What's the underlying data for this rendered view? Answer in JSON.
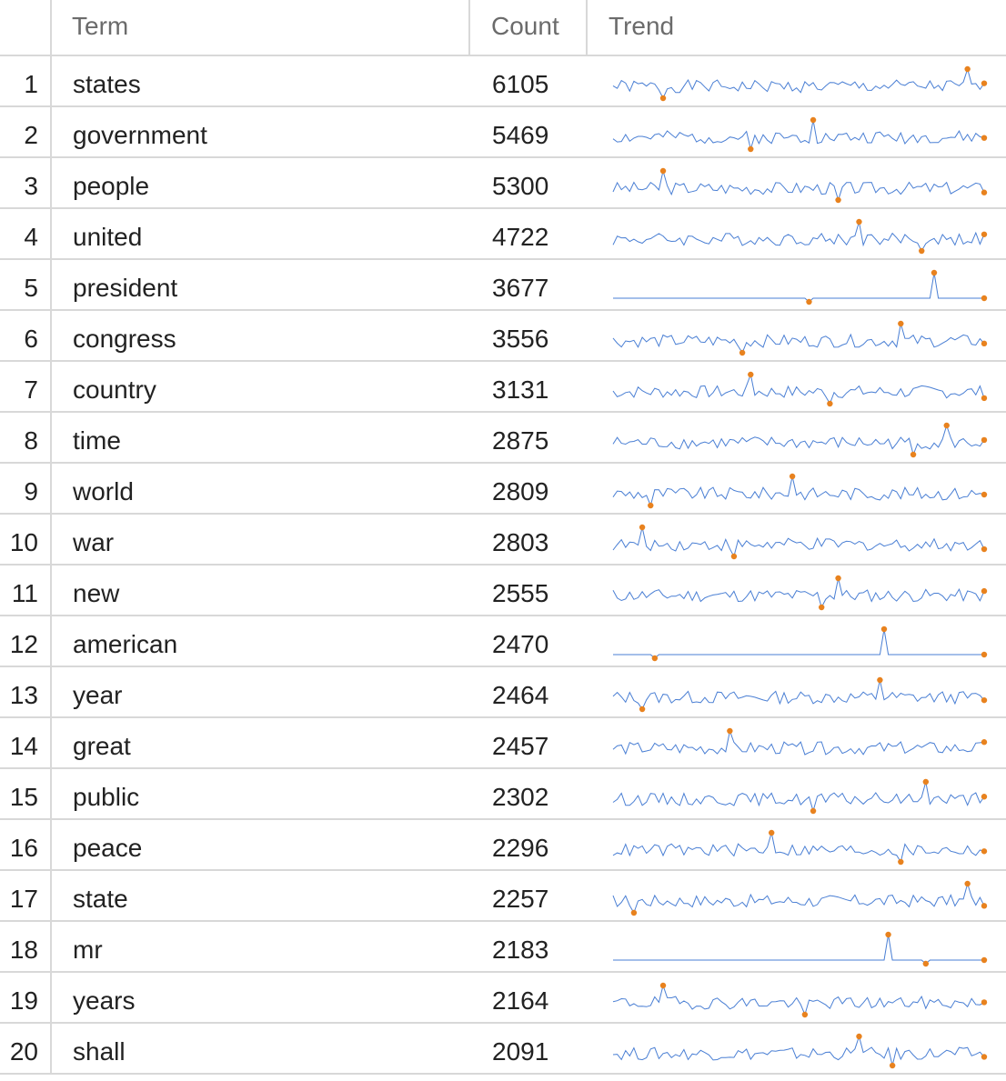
{
  "header": {
    "idx": "",
    "term": "Term",
    "count": "Count",
    "trend": "Trend"
  },
  "colors": {
    "line": "#4a7fd4",
    "dot": "#e8821e",
    "grid": "#d8d8d8",
    "header_text": "#6b6b6b",
    "text": "#222222"
  },
  "rows": [
    {
      "idx": "1",
      "term": "states",
      "count": "6105"
    },
    {
      "idx": "2",
      "term": "government",
      "count": "5469"
    },
    {
      "idx": "3",
      "term": "people",
      "count": "5300"
    },
    {
      "idx": "4",
      "term": "united",
      "count": "4722"
    },
    {
      "idx": "5",
      "term": "president",
      "count": "3677"
    },
    {
      "idx": "6",
      "term": "congress",
      "count": "3556"
    },
    {
      "idx": "7",
      "term": "country",
      "count": "3131"
    },
    {
      "idx": "8",
      "term": "time",
      "count": "2875"
    },
    {
      "idx": "9",
      "term": "world",
      "count": "2809"
    },
    {
      "idx": "10",
      "term": "war",
      "count": "2803"
    },
    {
      "idx": "11",
      "term": "new",
      "count": "2555"
    },
    {
      "idx": "12",
      "term": "american",
      "count": "2470"
    },
    {
      "idx": "13",
      "term": "year",
      "count": "2464"
    },
    {
      "idx": "14",
      "term": "great",
      "count": "2457"
    },
    {
      "idx": "15",
      "term": "public",
      "count": "2302"
    },
    {
      "idx": "16",
      "term": "peace",
      "count": "2296"
    },
    {
      "idx": "17",
      "term": "state",
      "count": "2257"
    },
    {
      "idx": "18",
      "term": "mr",
      "count": "2183"
    },
    {
      "idx": "19",
      "term": "years",
      "count": "2164"
    },
    {
      "idx": "20",
      "term": "shall",
      "count": "2091"
    }
  ]
}
